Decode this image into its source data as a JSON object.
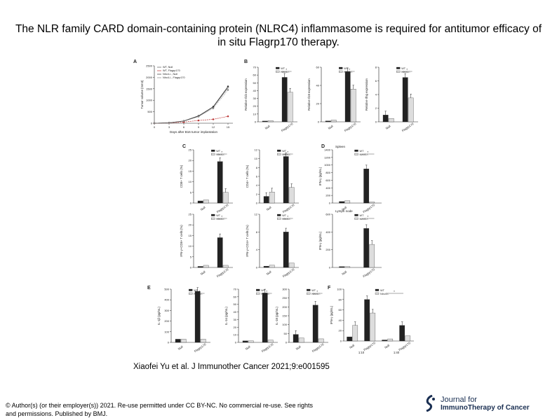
{
  "slide": {
    "title": "The NLR family CARD domain-containing protein (NLRC4) inflammasome is required for antitumor efficacy of in situ Flagrp170 therapy.",
    "citation": "Xiaofei Yu et al. J Immunother Cancer 2021;9:e001595",
    "license": "© Author(s) (or their employer(s)) 2021. Re-use permitted under CC BY-NC. No commercial re-use. See rights and permissions. Published by BMJ.",
    "journal": {
      "line1": "Journal for",
      "line2": "ImmunoTherapy of Cancer"
    }
  },
  "colors": {
    "black": "#222222",
    "grey": "#dddddd",
    "journal_blue": "#1a2f52"
  },
  "panel_labels": [
    "A",
    "B",
    "C",
    "D",
    "E",
    "F"
  ],
  "chart_data": [
    {
      "panel": "A",
      "type": "line",
      "xlabel": "Days after B16 tumor implantation",
      "ylabel": "Tumor volume (mm3)",
      "x": [
        0,
        3,
        6,
        9,
        12,
        15
      ],
      "ylim": [
        0,
        2500
      ],
      "yticks": [
        "0",
        "500",
        "1000",
        "1500",
        "2000",
        "2500"
      ],
      "legend": [
        "WT, Null",
        "WT, Flagrp170",
        "Nlrc4-/-, Null",
        "Nlrc4-/-, Flagrp170"
      ],
      "series": [
        {
          "name": "WT, Null",
          "values": [
            0,
            20,
            90,
            300,
            700,
            1550
          ]
        },
        {
          "name": "WT, Flagrp170",
          "values": [
            0,
            15,
            50,
            120,
            170,
            300
          ]
        },
        {
          "name": "Nlrc4-/-, Null",
          "values": [
            0,
            20,
            100,
            320,
            720,
            1600
          ]
        },
        {
          "name": "Nlrc4-/-, Flagrp170",
          "values": [
            0,
            20,
            95,
            290,
            650,
            1450
          ]
        }
      ]
    },
    {
      "panel": "B",
      "type": "bar",
      "ylabel": "Relative Il1b expression",
      "ylim": [
        0,
        70
      ],
      "yticks": [
        "0",
        "10",
        "20",
        "30",
        "40",
        "50",
        "60",
        "70"
      ],
      "categories": [
        "Null",
        "Flagrp170"
      ],
      "legend": [
        "WT",
        "Nlrc4-/-"
      ],
      "series": [
        {
          "name": "WT",
          "values": [
            1,
            57
          ]
        },
        {
          "name": "Nlrc4-/-",
          "values": [
            1.5,
            38
          ]
        }
      ]
    },
    {
      "panel": "B",
      "type": "bar",
      "ylabel": "Relative Il18 expression",
      "ylim": [
        0,
        60
      ],
      "yticks": [
        "0",
        "20",
        "40",
        "60"
      ],
      "categories": [
        "Null",
        "Flagrp170"
      ],
      "legend": [
        "WT",
        "Nlrc4-/-"
      ],
      "series": [
        {
          "name": "WT",
          "values": [
            1,
            55
          ]
        },
        {
          "name": "Nlrc4-/-",
          "values": [
            2,
            36
          ]
        }
      ]
    },
    {
      "panel": "B",
      "type": "bar",
      "ylabel": "Relative Ifng expression",
      "ylim": [
        0,
        8
      ],
      "yticks": [
        "0",
        "2",
        "4",
        "6",
        "8"
      ],
      "categories": [
        "Null",
        "Flagrp170"
      ],
      "legend": [
        "WT",
        "Nlrc4-/-"
      ],
      "series": [
        {
          "name": "WT",
          "values": [
            1,
            6.5
          ]
        },
        {
          "name": "Nlrc4-/-",
          "values": [
            0.5,
            3.5
          ]
        }
      ]
    },
    {
      "panel": "C",
      "type": "bar",
      "ylabel": "CD8+ T cells (%)",
      "ylim": [
        0,
        25
      ],
      "yticks": [
        "0",
        "5",
        "10",
        "15",
        "20",
        "25"
      ],
      "categories": [
        "Null",
        "Flagrp170"
      ],
      "legend": [
        "WT",
        "Nlrc4-/-"
      ],
      "series": [
        {
          "name": "WT",
          "values": [
            1,
            19.5
          ]
        },
        {
          "name": "Nlrc4-/-",
          "values": [
            1.5,
            5
          ]
        }
      ]
    },
    {
      "panel": "C",
      "type": "bar",
      "ylabel": "CD4+ T cells (%)",
      "ylim": [
        0,
        12
      ],
      "yticks": [
        "0",
        "2",
        "4",
        "6",
        "8",
        "10",
        "12"
      ],
      "categories": [
        "Null",
        "Flagrp170"
      ],
      "legend": [
        "WT",
        "Nlrc4-/-"
      ],
      "series": [
        {
          "name": "WT",
          "values": [
            1.5,
            10.5
          ]
        },
        {
          "name": "Nlrc4-/-",
          "values": [
            2.5,
            3.5
          ]
        }
      ]
    },
    {
      "panel": "C",
      "type": "bar",
      "ylabel": "IFN-γ+CD8+ T cells (%)",
      "ylim": [
        0,
        25
      ],
      "yticks": [
        "0",
        "5",
        "10",
        "15",
        "20",
        "25"
      ],
      "categories": [
        "Null",
        "Flagrp170"
      ],
      "legend": [
        "WT",
        "Nlrc4-/-"
      ],
      "series": [
        {
          "name": "WT",
          "values": [
            0.5,
            14
          ]
        },
        {
          "name": "Nlrc4-/-",
          "values": [
            1,
            1
          ]
        }
      ]
    },
    {
      "panel": "C",
      "type": "bar",
      "ylabel": "IFN-γ+CD4+ T cells (%)",
      "ylim": [
        0,
        12
      ],
      "yticks": [
        "0",
        "4",
        "8",
        "12"
      ],
      "categories": [
        "Null",
        "Flagrp170"
      ],
      "legend": [
        "WT",
        "Nlrc4-/-"
      ],
      "series": [
        {
          "name": "WT",
          "values": [
            0.3,
            8
          ]
        },
        {
          "name": "Nlrc4-/-",
          "values": [
            0.5,
            1
          ]
        }
      ]
    },
    {
      "panel": "D",
      "subtitle": "Spleen",
      "type": "bar",
      "ylabel": "IFN-γ (pg/mL)",
      "ylim": [
        0,
        1400
      ],
      "yticks": [
        "0",
        "200",
        "400",
        "600",
        "800",
        "1000",
        "1200",
        "1400"
      ],
      "categories": [
        "Null",
        "Flagrp170"
      ],
      "legend": [
        "WT",
        "Nlrc4-/-"
      ],
      "series": [
        {
          "name": "WT",
          "values": [
            40,
            900
          ]
        },
        {
          "name": "Nlrc4-/-",
          "values": [
            60,
            30
          ]
        }
      ]
    },
    {
      "panel": "D",
      "subtitle": "Lymph node",
      "type": "bar",
      "ylabel": "IFN-γ (pg/mL)",
      "ylim": [
        0,
        600
      ],
      "yticks": [
        "0",
        "200",
        "400",
        "600"
      ],
      "categories": [
        "Null",
        "Flagrp170"
      ],
      "legend": [
        "WT",
        "Nlrc4-/-"
      ],
      "series": [
        {
          "name": "WT",
          "values": [
            10,
            440
          ]
        },
        {
          "name": "Nlrc4-/-",
          "values": [
            10,
            260
          ]
        }
      ]
    },
    {
      "panel": "E",
      "type": "bar",
      "ylabel": "IL-1β (pg/mL)",
      "ylim": [
        0,
        500
      ],
      "yticks": [
        "0",
        "100",
        "200",
        "300",
        "400",
        "500"
      ],
      "categories": [
        "Null",
        "Flagrp170"
      ],
      "legend": [
        "WT",
        "Nlrc4-/-"
      ],
      "series": [
        {
          "name": "WT",
          "values": [
            30,
            480
          ]
        },
        {
          "name": "Nlrc4-/-",
          "values": [
            30,
            30
          ]
        }
      ]
    },
    {
      "panel": "E",
      "type": "bar",
      "ylabel": "IL-1α (pg/mL)",
      "ylim": [
        0,
        70
      ],
      "yticks": [
        "0",
        "10",
        "20",
        "30",
        "40",
        "50",
        "60",
        "70"
      ],
      "categories": [
        "Null",
        "Flagrp170"
      ],
      "legend": [
        "WT",
        "Nlrc4-/-"
      ],
      "series": [
        {
          "name": "WT",
          "values": [
            2,
            65
          ]
        },
        {
          "name": "Nlrc4-/-",
          "values": [
            2,
            3
          ]
        }
      ]
    },
    {
      "panel": "E",
      "type": "bar",
      "ylabel": "IL-18 (pg/mL)",
      "ylim": [
        0,
        300
      ],
      "yticks": [
        "0",
        "50",
        "100",
        "150",
        "200",
        "250",
        "300"
      ],
      "categories": [
        "Null",
        "Flagrp170"
      ],
      "legend": [
        "WT",
        "Nlrc4-/-"
      ],
      "series": [
        {
          "name": "WT",
          "values": [
            45,
            210
          ]
        },
        {
          "name": "Nlrc4-/-",
          "values": [
            25,
            20
          ]
        }
      ]
    },
    {
      "panel": "F",
      "type": "bar",
      "ylabel": "IFN-γ (pg/mL)",
      "ylim": [
        0,
        100
      ],
      "yticks": [
        "0",
        "20",
        "40",
        "60",
        "80",
        "100"
      ],
      "categories": [
        "Null",
        "Flagrp170",
        "Null",
        "Flagrp170"
      ],
      "group_labels": [
        "1:10",
        "1:40"
      ],
      "legend": [
        "WT",
        "Nlrc4-/-"
      ],
      "series": [
        {
          "name": "WT",
          "values": [
            8,
            80,
            2,
            30
          ]
        },
        {
          "name": "Nlrc4-/-",
          "values": [
            30,
            54,
            4,
            10
          ]
        }
      ]
    }
  ]
}
